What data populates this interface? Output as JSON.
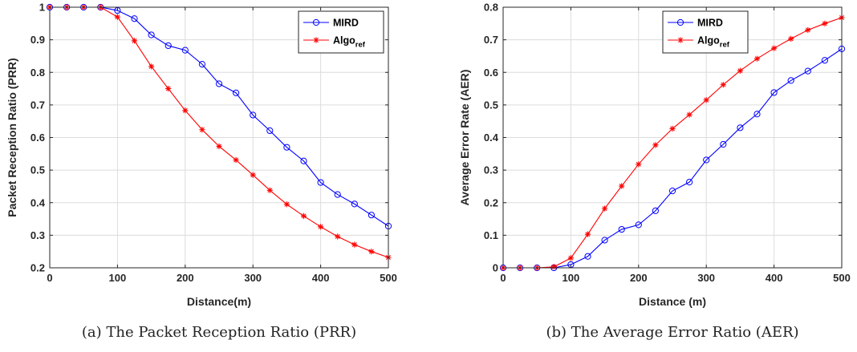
{
  "chart_data": [
    {
      "type": "line",
      "caption": "(a) The Packet Reception Ratio (PRR)",
      "xlabel": "Distance(m)",
      "ylabel": "Packet Reception Ratio (PRR)",
      "xlim": [
        0,
        500
      ],
      "ylim": [
        0.2,
        1
      ],
      "xticks": [
        0,
        100,
        200,
        300,
        400,
        500
      ],
      "yticks": [
        0.2,
        0.3,
        0.4,
        0.5,
        0.6,
        0.7,
        0.8,
        0.9,
        1
      ],
      "grid": true,
      "legend_position": "top-right",
      "x": [
        0,
        25,
        50,
        75,
        100,
        125,
        150,
        175,
        200,
        225,
        250,
        275,
        300,
        325,
        350,
        375,
        400,
        425,
        450,
        475,
        500
      ],
      "series": [
        {
          "name": "MIRD",
          "color": "#0000ff",
          "marker": "circle",
          "values": [
            1.0,
            1.0,
            1.0,
            1.0,
            0.99,
            0.965,
            0.915,
            0.882,
            0.868,
            0.825,
            0.765,
            0.737,
            0.669,
            0.621,
            0.57,
            0.528,
            0.462,
            0.425,
            0.396,
            0.362,
            0.328
          ]
        },
        {
          "name": "Algo",
          "name_subscript": "ref",
          "color": "#ff0000",
          "marker": "star",
          "values": [
            1.0,
            1.0,
            1.0,
            1.0,
            0.97,
            0.897,
            0.818,
            0.75,
            0.683,
            0.624,
            0.573,
            0.531,
            0.485,
            0.438,
            0.395,
            0.359,
            0.326,
            0.296,
            0.271,
            0.25,
            0.232
          ]
        }
      ]
    },
    {
      "type": "line",
      "caption": "(b) The Average Error Ratio (AER)",
      "xlabel": "Distance (m)",
      "ylabel": "Average Error Rate (AER)",
      "xlim": [
        0,
        500
      ],
      "ylim": [
        0,
        0.8
      ],
      "xticks": [
        0,
        100,
        200,
        300,
        400,
        500
      ],
      "yticks": [
        0,
        0.1,
        0.2,
        0.3,
        0.4,
        0.5,
        0.6,
        0.7,
        0.8
      ],
      "grid": true,
      "legend_position": "top-center",
      "x": [
        0,
        25,
        50,
        75,
        100,
        125,
        150,
        175,
        200,
        225,
        250,
        275,
        300,
        325,
        350,
        375,
        400,
        425,
        450,
        475,
        500
      ],
      "series": [
        {
          "name": "MIRD",
          "color": "#0000ff",
          "marker": "circle",
          "values": [
            0,
            0,
            0,
            0,
            0.01,
            0.035,
            0.085,
            0.118,
            0.132,
            0.175,
            0.236,
            0.263,
            0.331,
            0.379,
            0.43,
            0.472,
            0.538,
            0.575,
            0.604,
            0.637,
            0.672
          ]
        },
        {
          "name": "Algo",
          "name_subscript": "ref",
          "color": "#ff0000",
          "marker": "star",
          "values": [
            0,
            0,
            0,
            0.003,
            0.03,
            0.103,
            0.182,
            0.251,
            0.318,
            0.377,
            0.427,
            0.47,
            0.515,
            0.562,
            0.605,
            0.642,
            0.674,
            0.703,
            0.73,
            0.75,
            0.768
          ]
        }
      ]
    }
  ]
}
